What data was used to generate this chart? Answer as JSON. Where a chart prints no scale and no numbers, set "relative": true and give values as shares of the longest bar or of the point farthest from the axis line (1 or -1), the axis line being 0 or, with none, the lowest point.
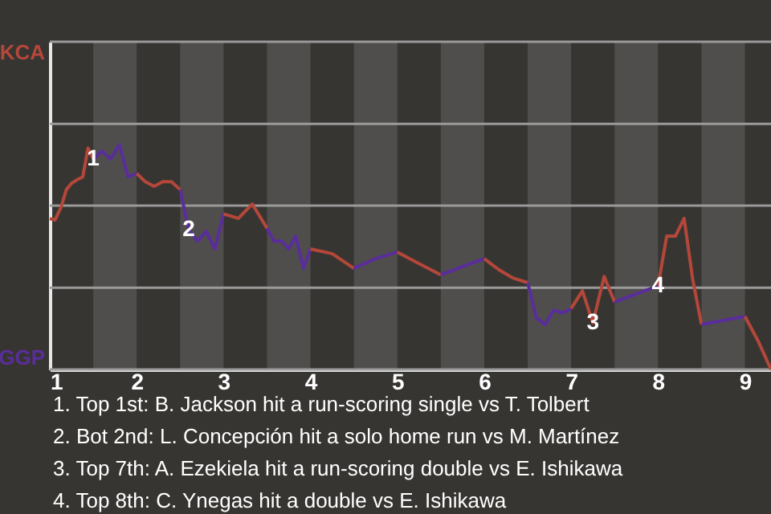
{
  "chart_data": {
    "type": "line",
    "relative": true,
    "xlim": [
      1,
      9.3
    ],
    "xticks": [
      1,
      2,
      3,
      4,
      5,
      6,
      7,
      8,
      9
    ],
    "marker": "none",
    "line_style": "solid",
    "series": [
      {
        "color": "#b5473a",
        "x": [
          1,
          1.06,
          1.13,
          1.19,
          1.25,
          1.31,
          1.38,
          1.44,
          1.5
        ],
        "values": [
          0.671,
          0.665,
          0.722,
          0.8,
          0.828,
          0.843,
          0.857,
          0.985,
          0.936
        ]
      },
      {
        "color": "#5a2d9c",
        "x": [
          1.5,
          1.6,
          1.7,
          1.8,
          1.9,
          2
        ],
        "values": [
          0.936,
          0.972,
          0.936,
          1,
          0.857,
          0.872
        ]
      },
      {
        "color": "#b5473a",
        "x": [
          2,
          2.1,
          2.2,
          2.3,
          2.4,
          2.5
        ],
        "values": [
          0.872,
          0.835,
          0.815,
          0.835,
          0.835,
          0.8
        ]
      },
      {
        "color": "#5a2d9c",
        "x": [
          2.5,
          2.6,
          2.7,
          2.8,
          2.9,
          3
        ],
        "values": [
          0.8,
          0.621,
          0.571,
          0.614,
          0.536,
          0.692
        ]
      },
      {
        "color": "#b5473a",
        "x": [
          3,
          3.17,
          3.33,
          3.5
        ],
        "values": [
          0.692,
          0.672,
          0.736,
          0.628
        ]
      },
      {
        "color": "#5a2d9c",
        "x": [
          3.5,
          3.58,
          3.67,
          3.75,
          3.83,
          3.92,
          4
        ],
        "values": [
          0.628,
          0.571,
          0.571,
          0.536,
          0.593,
          0.45,
          0.536
        ]
      },
      {
        "color": "#b5473a",
        "x": [
          4,
          4.25,
          4.5
        ],
        "values": [
          0.536,
          0.515,
          0.45
        ]
      },
      {
        "color": "#5a2d9c",
        "x": [
          4.5,
          4.75,
          5
        ],
        "values": [
          0.45,
          0.493,
          0.522
        ]
      },
      {
        "color": "#b5473a",
        "x": [
          5,
          5.25,
          5.5
        ],
        "values": [
          0.522,
          0.471,
          0.421
        ]
      },
      {
        "color": "#5a2d9c",
        "x": [
          5.5,
          5.75,
          6
        ],
        "values": [
          0.421,
          0.458,
          0.493
        ]
      },
      {
        "color": "#b5473a",
        "x": [
          6,
          6.17,
          6.33,
          6.5
        ],
        "values": [
          0.493,
          0.443,
          0.407,
          0.386
        ]
      },
      {
        "color": "#5a2d9c",
        "x": [
          6.5,
          6.6,
          6.7,
          6.8,
          6.9,
          7
        ],
        "values": [
          0.386,
          0.229,
          0.2,
          0.264,
          0.251,
          0.271
        ]
      },
      {
        "color": "#b5473a",
        "x": [
          7,
          7.13,
          7.25,
          7.38,
          7.5
        ],
        "values": [
          0.271,
          0.35,
          0.207,
          0.414,
          0.3
        ]
      },
      {
        "color": "#5a2d9c",
        "x": [
          7.5,
          8
        ],
        "values": [
          0.3,
          0.372
        ]
      },
      {
        "color": "#b5473a",
        "x": [
          8,
          8.1,
          8.2,
          8.3,
          8.4,
          8.5
        ],
        "values": [
          0.372,
          0.593,
          0.593,
          0.672,
          0.399,
          0.2
        ]
      },
      {
        "color": "#5a2d9c",
        "x": [
          8.5,
          9
        ],
        "values": [
          0.2,
          0.236
        ]
      },
      {
        "color": "#b5473a",
        "x": [
          9,
          9.15,
          9.3
        ],
        "values": [
          0.236,
          0.128,
          0
        ]
      }
    ],
    "ref_lines": [
      {
        "axis": "y",
        "value": 1.458,
        "label": "KCA",
        "color": "#9a9a9a"
      },
      {
        "axis": "y",
        "value": 1.093,
        "label": null,
        "color": "#9a9a9a"
      },
      {
        "axis": "y",
        "value": 0.729,
        "label": null,
        "color": "#9a9a9a"
      },
      {
        "axis": "y",
        "value": 0.364,
        "label": null,
        "color": "#9a9a9a"
      },
      {
        "axis": "y",
        "value": 0,
        "label": "GGP",
        "color": "#9a9a9a"
      }
    ],
    "bands": [
      {
        "axis": "x",
        "from": 1.5,
        "to": 2,
        "label": null,
        "color": "#4f4e4c"
      },
      {
        "axis": "x",
        "from": 2.5,
        "to": 3,
        "label": null,
        "color": "#4f4e4c"
      },
      {
        "axis": "x",
        "from": 3.5,
        "to": 4,
        "label": null,
        "color": "#4f4e4c"
      },
      {
        "axis": "x",
        "from": 4.5,
        "to": 5,
        "label": null,
        "color": "#4f4e4c"
      },
      {
        "axis": "x",
        "from": 5.5,
        "to": 6,
        "label": null,
        "color": "#4f4e4c"
      },
      {
        "axis": "x",
        "from": 6.5,
        "to": 7,
        "label": null,
        "color": "#4f4e4c"
      },
      {
        "axis": "x",
        "from": 7.5,
        "to": 8,
        "label": null,
        "color": "#4f4e4c"
      },
      {
        "axis": "x",
        "from": 8.5,
        "to": 9,
        "label": null,
        "color": "#4f4e4c"
      }
    ],
    "annotations": [
      {
        "text": "1",
        "x": 1.5,
        "y": 0.936
      },
      {
        "text": "2",
        "x": 2.6,
        "y": 0.621
      },
      {
        "text": "3",
        "x": 7.25,
        "y": 0.207
      },
      {
        "text": "4",
        "x": 8,
        "y": 0.372
      },
      "1. Top 1st: B. Jackson hit a run-scoring single vs T. Tolbert",
      "2. Bot 2nd: L. Concepción hit a solo home run vs M. Martínez",
      "3. Top 7th: A. Ezekiela hit a run-scoring double vs E. Ishikawa",
      "4. Top 8th: C. Ynegas hit a double vs E. Ishikawa"
    ]
  }
}
